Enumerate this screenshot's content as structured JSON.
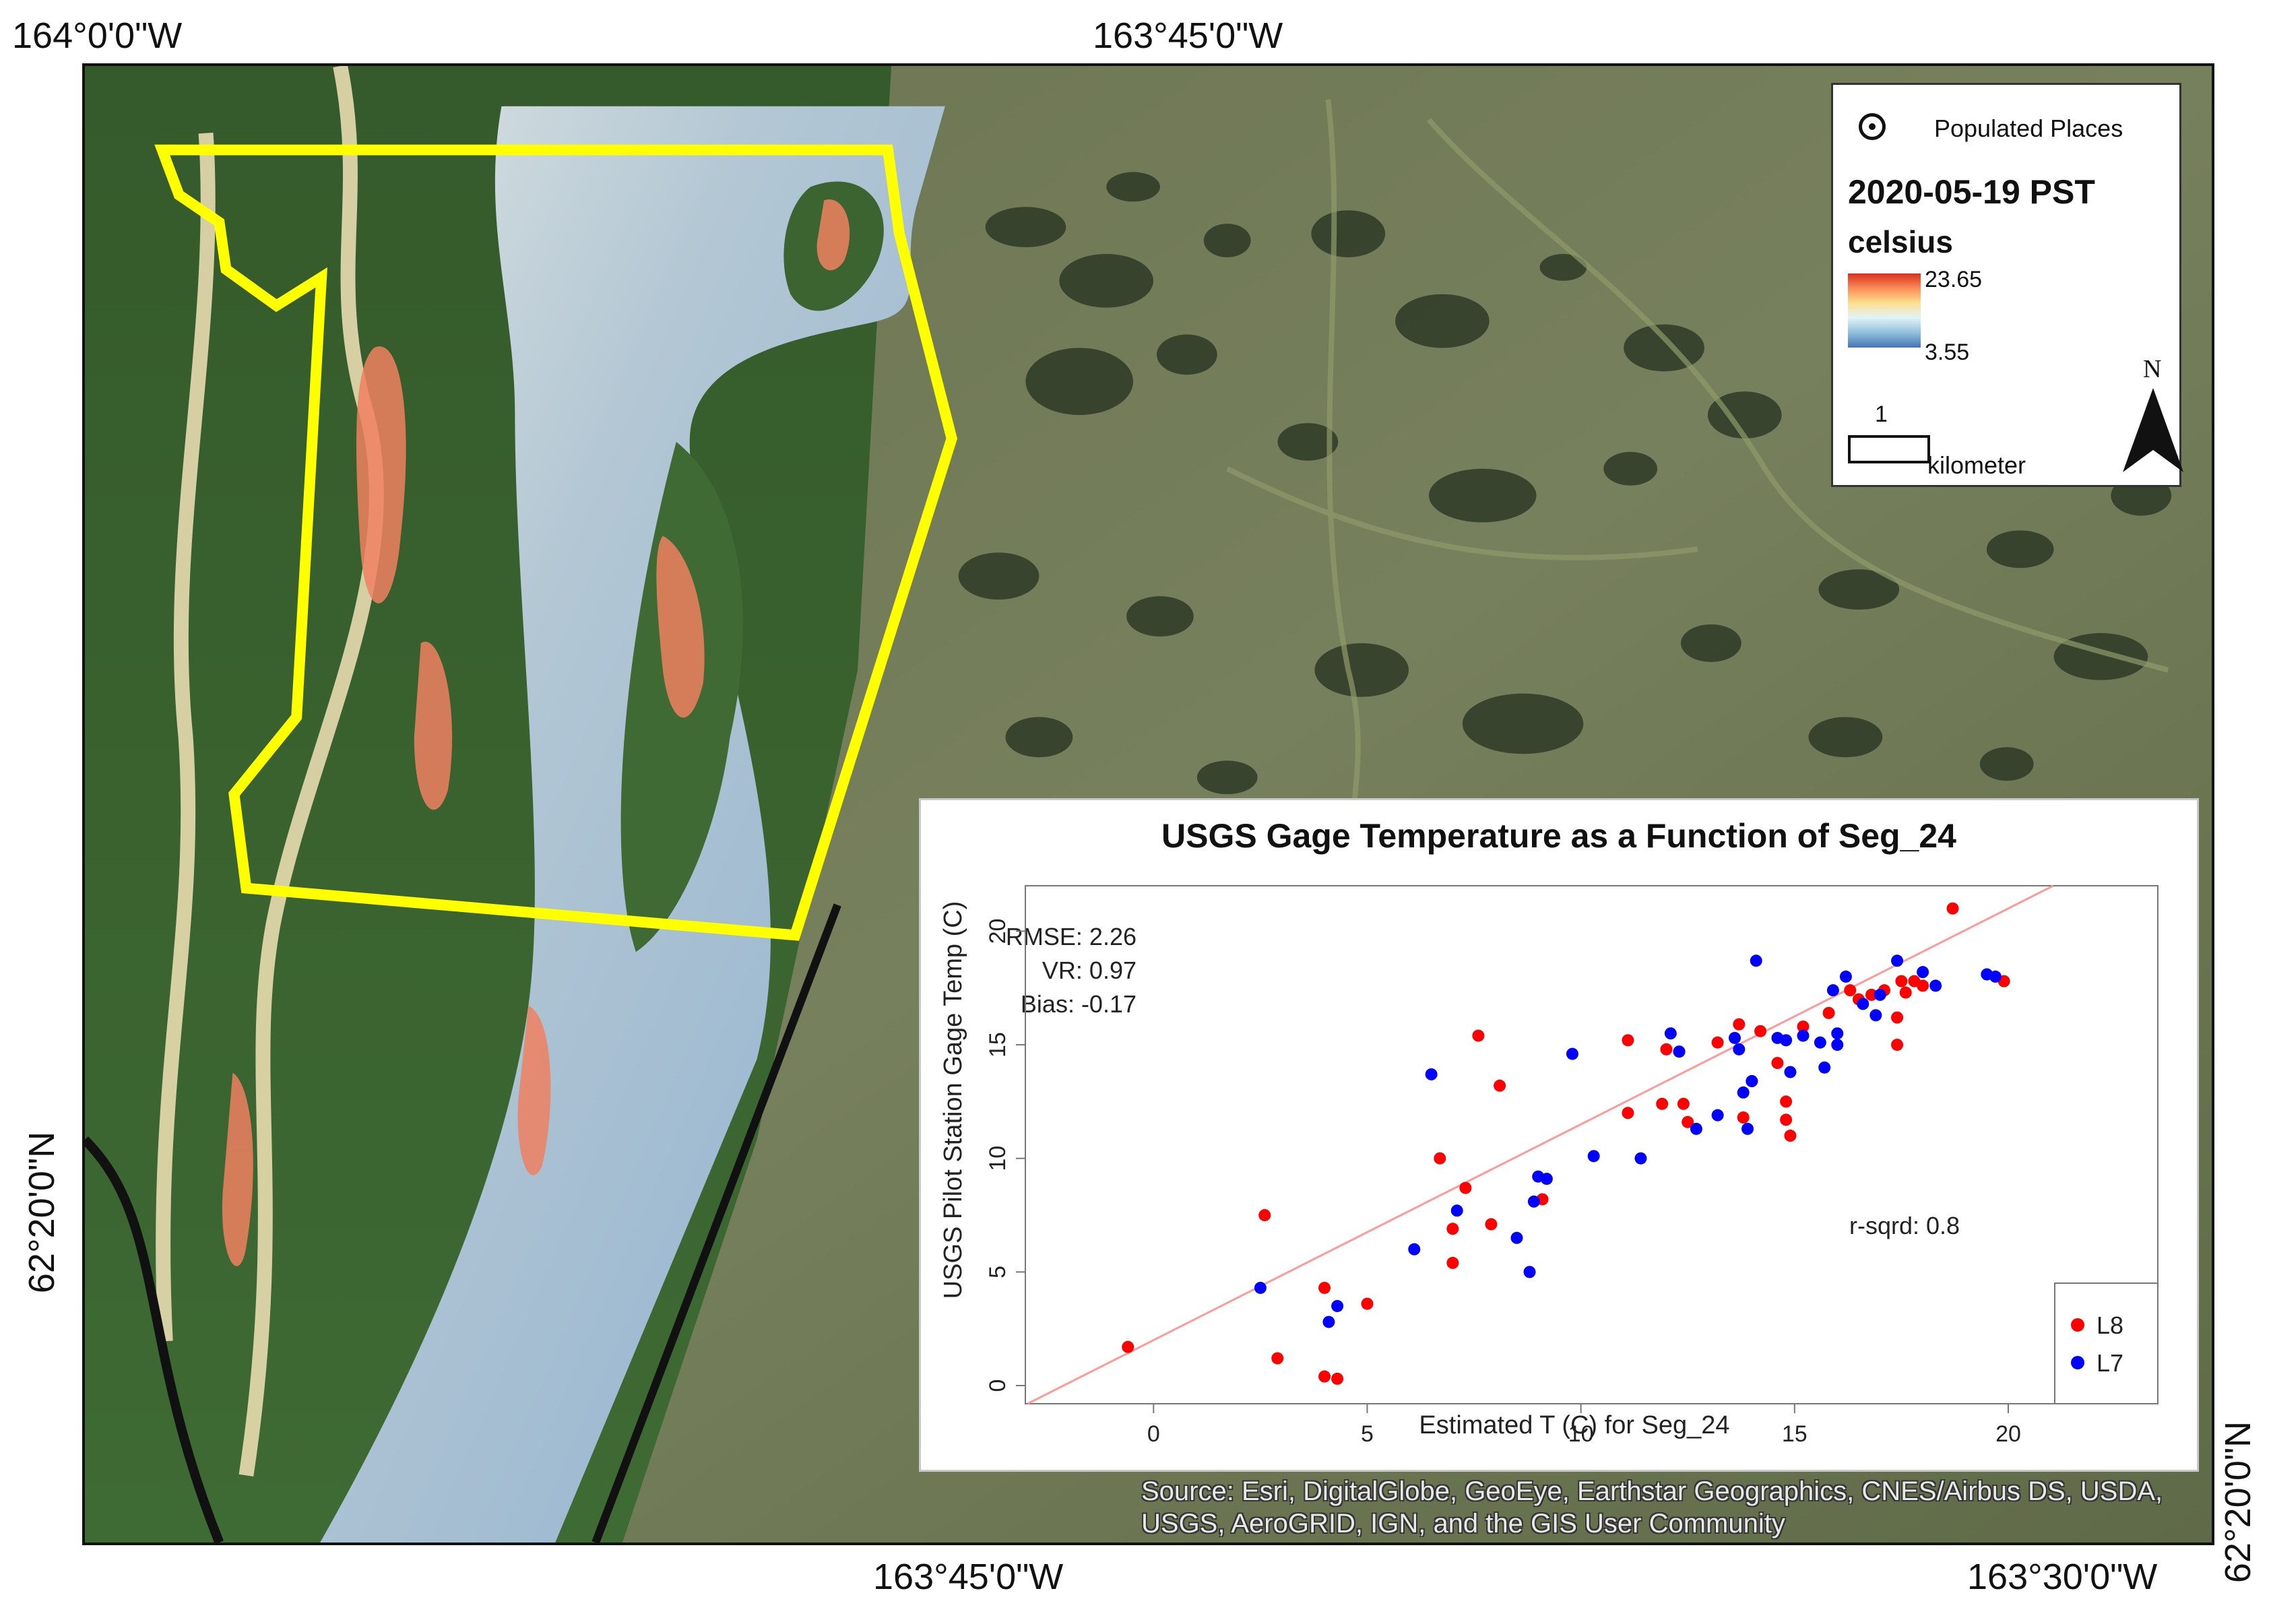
{
  "coordinates": {
    "top_left": "164°0'0\"W",
    "top_center": "163°45'0\"W",
    "left_lat": "62°20'0\"N",
    "bottom_center": "163°45'0\"W",
    "bottom_right": "163°30'0\"W",
    "right_lat": "62°20'0\"N"
  },
  "legend": {
    "populated_places": "Populated Places",
    "date": "2020-05-19 PST",
    "unit": "celsius",
    "max": "23.65",
    "min": "3.55",
    "scale_value": "1",
    "scale_unit": "kilometer",
    "north": "N",
    "colors": [
      "#d7301f",
      "#fc8d59",
      "#fee090",
      "#e0f3f8",
      "#91bfdb",
      "#4575b4"
    ]
  },
  "attribution": "Source: Esri, DigitalGlobe, GeoEye, Earthstar Geographics, CNES/Airbus DS, USDA, USGS, AeroGRID, IGN, and the GIS User Community",
  "colors": {
    "boundary": "#ffff00",
    "l8": "#ff0000",
    "l7": "#0000ff",
    "fit_line": "#ff9a9a"
  },
  "chart_data": {
    "type": "scatter",
    "title": "USGS Gage Temperature as a Function of Seg_24",
    "xlabel": "Estimated T (C) for Seg_24",
    "ylabel": "USGS Pilot Station Gage Temp (C)",
    "xlim": [
      -3,
      23.5
    ],
    "ylim": [
      -0.8,
      22
    ],
    "x_ticks": [
      0,
      5,
      10,
      15,
      20
    ],
    "y_ticks": [
      0,
      5,
      10,
      15,
      20
    ],
    "stats": {
      "rmse": "RMSE: 2.26",
      "vr": "VR: 0.97",
      "bias": "Bias: -0.17",
      "r_sqrd": "r-sqrd: 0.8"
    },
    "fit_line": {
      "slope": 0.95,
      "intercept": 2.0
    },
    "legend_position": "bottom-right",
    "series": [
      {
        "name": "L8",
        "color": "#ff0000",
        "points": [
          [
            -0.6,
            1.7
          ],
          [
            2.6,
            7.5
          ],
          [
            2.9,
            1.2
          ],
          [
            4.0,
            4.3
          ],
          [
            4.0,
            0.4
          ],
          [
            4.3,
            0.3
          ],
          [
            5.0,
            3.6
          ],
          [
            6.7,
            10.0
          ],
          [
            7.0,
            5.4
          ],
          [
            7.0,
            6.9
          ],
          [
            7.3,
            8.7
          ],
          [
            7.6,
            15.4
          ],
          [
            7.9,
            7.1
          ],
          [
            8.1,
            13.2
          ],
          [
            9.1,
            8.2
          ],
          [
            11.1,
            12.0
          ],
          [
            11.1,
            15.2
          ],
          [
            11.9,
            12.4
          ],
          [
            12.0,
            14.8
          ],
          [
            12.3,
            14.7
          ],
          [
            12.4,
            12.4
          ],
          [
            12.5,
            11.6
          ],
          [
            13.2,
            15.1
          ],
          [
            13.7,
            15.9
          ],
          [
            13.8,
            11.8
          ],
          [
            14.0,
            13.4
          ],
          [
            14.2,
            15.6
          ],
          [
            14.6,
            14.2
          ],
          [
            14.8,
            12.5
          ],
          [
            14.8,
            11.7
          ],
          [
            14.9,
            11.0
          ],
          [
            15.2,
            15.8
          ],
          [
            15.8,
            16.4
          ],
          [
            16.3,
            17.4
          ],
          [
            16.5,
            17.0
          ],
          [
            16.8,
            17.2
          ],
          [
            17.1,
            17.4
          ],
          [
            17.4,
            16.2
          ],
          [
            17.4,
            15.0
          ],
          [
            17.5,
            17.8
          ],
          [
            17.6,
            17.3
          ],
          [
            17.8,
            17.8
          ],
          [
            18.0,
            17.6
          ],
          [
            18.7,
            21.0
          ],
          [
            19.9,
            17.8
          ]
        ]
      },
      {
        "name": "L7",
        "color": "#0000ff",
        "points": [
          [
            2.5,
            4.3
          ],
          [
            4.1,
            2.8
          ],
          [
            4.3,
            3.5
          ],
          [
            6.1,
            6.0
          ],
          [
            6.5,
            13.7
          ],
          [
            7.1,
            7.7
          ],
          [
            8.5,
            6.5
          ],
          [
            8.8,
            5.0
          ],
          [
            8.9,
            8.1
          ],
          [
            9.0,
            9.2
          ],
          [
            9.2,
            9.1
          ],
          [
            9.8,
            14.6
          ],
          [
            10.3,
            10.1
          ],
          [
            11.4,
            10.0
          ],
          [
            12.1,
            15.5
          ],
          [
            12.3,
            14.7
          ],
          [
            12.7,
            11.3
          ],
          [
            13.2,
            11.9
          ],
          [
            13.6,
            15.3
          ],
          [
            13.7,
            14.8
          ],
          [
            13.8,
            12.9
          ],
          [
            13.9,
            11.3
          ],
          [
            14.0,
            13.4
          ],
          [
            14.1,
            18.7
          ],
          [
            14.6,
            15.3
          ],
          [
            14.8,
            15.2
          ],
          [
            14.9,
            13.8
          ],
          [
            15.2,
            15.4
          ],
          [
            15.6,
            15.1
          ],
          [
            15.7,
            14.0
          ],
          [
            15.9,
            17.4
          ],
          [
            16.0,
            15.0
          ],
          [
            16.0,
            15.5
          ],
          [
            16.2,
            18.0
          ],
          [
            16.6,
            16.8
          ],
          [
            16.9,
            16.3
          ],
          [
            17.0,
            17.2
          ],
          [
            17.4,
            18.7
          ],
          [
            18.0,
            18.2
          ],
          [
            18.3,
            17.6
          ],
          [
            19.5,
            18.1
          ],
          [
            19.7,
            18.0
          ]
        ]
      }
    ]
  }
}
